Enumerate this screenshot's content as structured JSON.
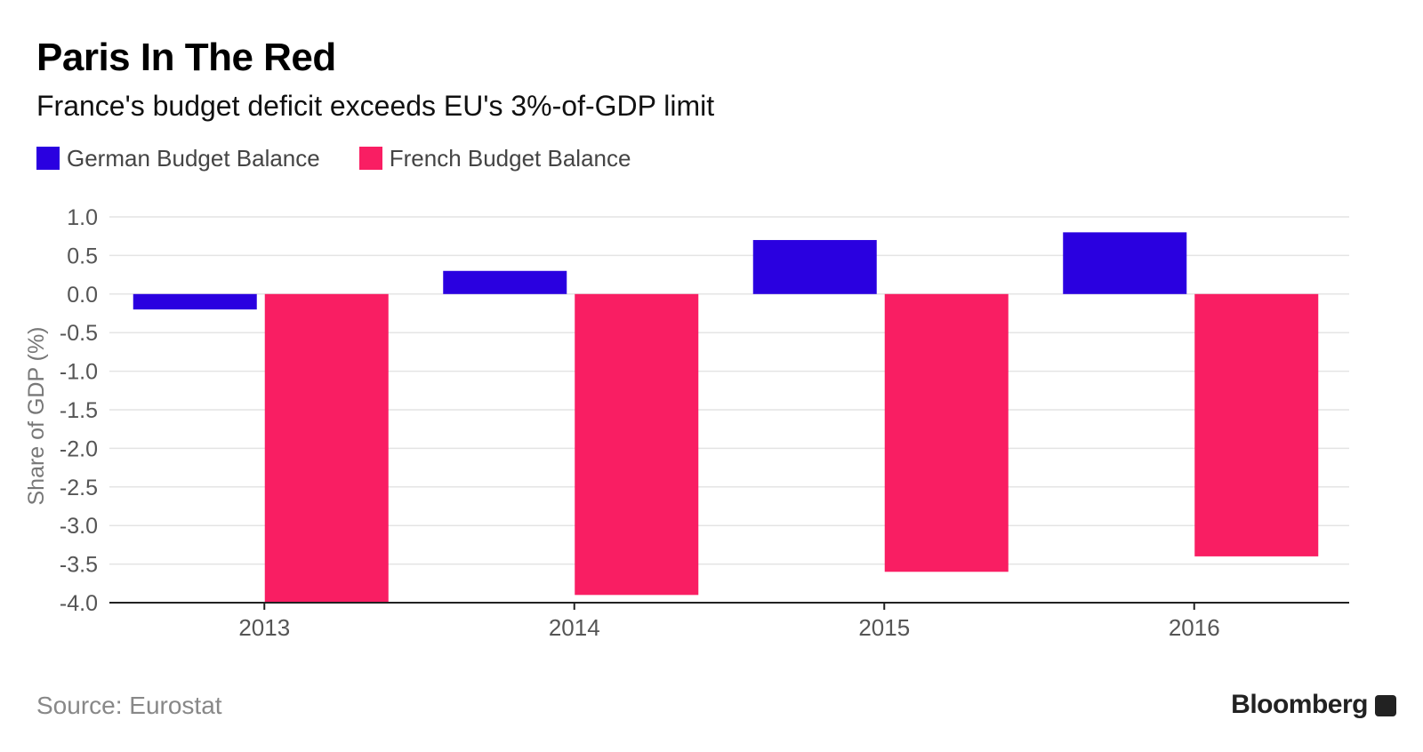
{
  "title": "Paris In The Red",
  "subtitle": "France's budget deficit exceeds EU's 3%-of-GDP limit",
  "source": "Source: Eurostat",
  "brand": "Bloomberg",
  "colors": {
    "german": "#2a00e0",
    "french": "#f91e63",
    "grid": "#e4e4e4",
    "axis": "#222222",
    "tick_text": "#555555"
  },
  "chart_data": {
    "type": "bar",
    "categories": [
      "2013",
      "2014",
      "2015",
      "2016"
    ],
    "series": [
      {
        "name": "German Budget Balance",
        "values": [
          -0.2,
          0.3,
          0.7,
          0.8
        ]
      },
      {
        "name": "French Budget Balance",
        "values": [
          -4.0,
          -3.9,
          -3.6,
          -3.4
        ]
      }
    ],
    "xlabel": "",
    "ylabel": "Share of GDP (%)",
    "ylim": [
      -4.0,
      1.0
    ],
    "yticks": [
      "1.0",
      "0.5",
      "0.0",
      "-0.5",
      "-1.0",
      "-1.5",
      "-2.0",
      "-2.5",
      "-3.0",
      "-3.5",
      "-4.0"
    ],
    "grid": true,
    "legend": "top-left"
  }
}
